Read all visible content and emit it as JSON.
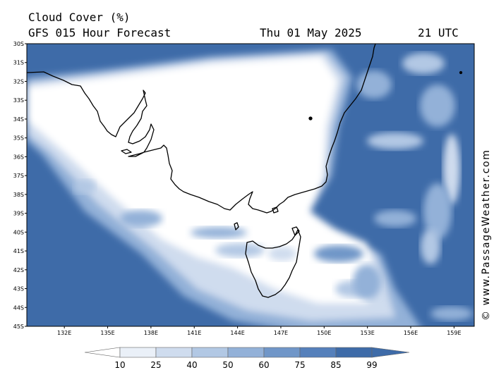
{
  "header": {
    "title": "Cloud Cover (%)",
    "subtitle": "GFS 015 Hour Forecast",
    "date": "Thu 01 May 2025",
    "time": "21 UTC"
  },
  "credit": "© www.PassageWeather.com",
  "map": {
    "lat_labels": [
      "30S",
      "31S",
      "32S",
      "33S",
      "34S",
      "35S",
      "36S",
      "37S",
      "38S",
      "39S",
      "40S",
      "41S",
      "42S",
      "43S",
      "44S",
      "45S"
    ],
    "lon_labels": [
      "132E",
      "135E",
      "138E",
      "141E",
      "144E",
      "147E",
      "150E",
      "153E",
      "156E",
      "159E"
    ],
    "extent": {
      "lon_min": 129.4,
      "lon_max": 160.4,
      "lat_max": -30,
      "lat_min": -45
    },
    "colors": {
      "land_outline": "#000000",
      "clear": "#ffffff",
      "cloud_dark": "#3e6ba8"
    }
  },
  "colorbar": {
    "levels": [
      "10",
      "25",
      "40",
      "50",
      "60",
      "75",
      "85",
      "99"
    ],
    "colors": [
      "#ffffff",
      "#eaf0f8",
      "#cfdcee",
      "#b2c8e4",
      "#93b1d8",
      "#7096c8",
      "#5580bb",
      "#3e6ba8"
    ]
  }
}
